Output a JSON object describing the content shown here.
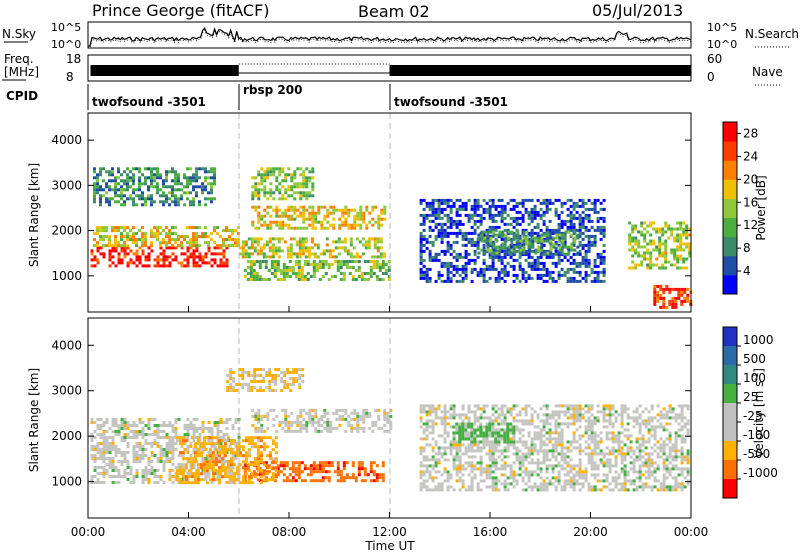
{
  "header": {
    "station": "Prince George (fitACF)",
    "beam": "Beam 02",
    "date": "05/Jul/2013"
  },
  "top_strip": {
    "left_label": "N.Sky",
    "left_ticks": [
      "10^5",
      "10^0"
    ],
    "right_ticks": [
      "10^5",
      "10^0"
    ],
    "right_label": "N.Search"
  },
  "freq_strip": {
    "left_label_line1": "Freq.",
    "left_label_line2": "[MHz]",
    "left_ticks": [
      "18",
      "8"
    ],
    "right_ticks": [
      "60",
      "0"
    ],
    "right_label": "Nave"
  },
  "cpid": {
    "label": "CPID",
    "segments": [
      {
        "name": "twofsound -3501",
        "start_hour": 0,
        "end_hour": 6
      },
      {
        "name": "rbsp 200",
        "start_hour": 6,
        "end_hour": 12
      },
      {
        "name": "twofsound -3501",
        "start_hour": 12,
        "end_hour": 24
      }
    ]
  },
  "xaxis": {
    "ticks": [
      "00:00",
      "04:00",
      "08:00",
      "12:00",
      "16:00",
      "20:00",
      "00:00"
    ],
    "label": "Time UT"
  },
  "colors": {
    "power_scale": [
      "#0000ff",
      "#1e4ea8",
      "#3c8a6a",
      "#4cae3c",
      "#8fc83a",
      "#f0c000",
      "#ff8000",
      "#ff3c00",
      "#ff0000"
    ],
    "velocity_scale": [
      "#2030c0",
      "#2c6aa8",
      "#2f8a80",
      "#44b040",
      "#c0c0c0",
      "#c0c0c0",
      "#ffb000",
      "#ff7000",
      "#ff0000"
    ]
  },
  "chart_data": [
    {
      "type": "heatmap",
      "panel": "power",
      "ylabel": "Slant Range [km]",
      "yticks": [
        1000,
        2000,
        3000,
        4000
      ],
      "ylim": [
        200,
        4600
      ],
      "xlim_hours": [
        0,
        24
      ],
      "colorbar_label": "Power [dB]",
      "colorbar_ticks": [
        28,
        24,
        20,
        16,
        12,
        8,
        4
      ],
      "colorbar_range": [
        0,
        30
      ],
      "series": [
        {
          "start_hour": 0.1,
          "end_hour": 5.5,
          "range_low": 1250,
          "range_high": 1650,
          "level": 0.92
        },
        {
          "start_hour": 6,
          "end_hour": 11.8,
          "range_low": 1450,
          "range_high": 1850,
          "level": 0.55
        },
        {
          "start_hour": 0.2,
          "end_hour": 6,
          "range_low": 1700,
          "range_high": 2100,
          "level": 0.6
        },
        {
          "start_hour": 6.5,
          "end_hour": 11.8,
          "range_low": 2050,
          "range_high": 2550,
          "level": 0.6
        },
        {
          "start_hour": 6.2,
          "end_hour": 12,
          "range_low": 950,
          "range_high": 1350,
          "level": 0.45
        },
        {
          "start_hour": 0.2,
          "end_hour": 5,
          "range_low": 2600,
          "range_high": 3400,
          "level": 0.3
        },
        {
          "start_hour": 6.5,
          "end_hour": 9,
          "range_low": 2700,
          "range_high": 3400,
          "level": 0.45
        },
        {
          "start_hour": 13.2,
          "end_hour": 20.5,
          "range_low": 900,
          "range_high": 2700,
          "level": 0.15
        },
        {
          "start_hour": 15.5,
          "end_hour": 19.5,
          "range_low": 1500,
          "range_high": 2000,
          "level": 0.35
        },
        {
          "start_hour": 21.5,
          "end_hour": 23.9,
          "range_low": 1200,
          "range_high": 2200,
          "level": 0.5
        },
        {
          "start_hour": 22.5,
          "end_hour": 24,
          "range_low": 300,
          "range_high": 800,
          "level": 0.85
        }
      ]
    },
    {
      "type": "heatmap",
      "panel": "velocity",
      "ylabel": "Slant Range [km]",
      "yticks": [
        1000,
        2000,
        3000,
        4000
      ],
      "ylim": [
        200,
        4600
      ],
      "xlim_hours": [
        0,
        24
      ],
      "colorbar_label": "Velocity [m s^-1]",
      "colorbar_ticks": [
        1000,
        500,
        100,
        25,
        -25,
        -100,
        -500,
        -1000
      ],
      "series": [
        {
          "start_hour": 0.1,
          "end_hour": 6,
          "range_low": 1000,
          "range_high": 2400,
          "velocity": 0
        },
        {
          "start_hour": 6.5,
          "end_hour": 12,
          "range_low": 2100,
          "range_high": 2600,
          "velocity": 0
        },
        {
          "start_hour": 6.2,
          "end_hour": 11.8,
          "range_low": 1000,
          "range_high": 1450,
          "velocity": -600
        },
        {
          "start_hour": 3.5,
          "end_hour": 7.5,
          "range_low": 1000,
          "range_high": 2000,
          "velocity": -250
        },
        {
          "start_hour": 5.5,
          "end_hour": 8.5,
          "range_low": 3000,
          "range_high": 3500,
          "velocity": -150
        },
        {
          "start_hour": 13.2,
          "end_hour": 23.9,
          "range_low": 800,
          "range_high": 2700,
          "velocity": 0
        },
        {
          "start_hour": 14.5,
          "end_hour": 17,
          "range_low": 1900,
          "range_high": 2300,
          "velocity": 200
        }
      ]
    }
  ]
}
